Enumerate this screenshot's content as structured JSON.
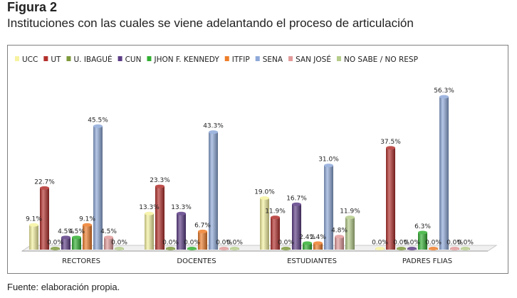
{
  "figure_label": "Figura 2",
  "figure_title": "Instituciones con las cuales se viene adelantando el proceso de articulación",
  "source_note": "Fuente: elaboración propia.",
  "chart_data": {
    "type": "bar",
    "categories": [
      "RECTORES",
      "DOCENTES",
      "ESTUDIANTES",
      "PADRES FLIAS"
    ],
    "series": [
      {
        "name": "UCC",
        "color": "#f6f2a0",
        "values": [
          9.1,
          13.3,
          19.0,
          0.0
        ],
        "labels": [
          "9.1%",
          "13.3%",
          "19.0%",
          "0.0%"
        ]
      },
      {
        "name": "UT",
        "color": "#b3302c",
        "values": [
          22.7,
          23.3,
          11.9,
          37.5
        ],
        "labels": [
          "22.7%",
          "23.3%",
          "11.9%",
          "37.5%"
        ]
      },
      {
        "name": "U. IBAGUÉ",
        "color": "#7e9a3c",
        "values": [
          0.0,
          0.0,
          0.0,
          0.0
        ],
        "labels": [
          "0.0%",
          "0.0%",
          "0.0%",
          "0.0%"
        ]
      },
      {
        "name": "CUN",
        "color": "#5d3d86",
        "values": [
          4.5,
          13.3,
          16.7,
          0.0
        ],
        "labels": [
          "4.5%",
          "13.3%",
          "16.7%",
          "0.0%"
        ]
      },
      {
        "name": "JHON F. KENNEDY",
        "color": "#33b033",
        "values": [
          4.5,
          0.0,
          2.4,
          6.3
        ],
        "labels": [
          "4.5%",
          "0.0%",
          "2.4%",
          "6.3%"
        ]
      },
      {
        "name": "ITFIP",
        "color": "#ee7d2a",
        "values": [
          9.1,
          6.7,
          2.4,
          0.0
        ],
        "labels": [
          "9.1%",
          "6.7%",
          "2.4%",
          "0.0%"
        ]
      },
      {
        "name": "SENA",
        "color": "#8ea9d9",
        "values": [
          45.5,
          43.3,
          31.0,
          56.3
        ],
        "labels": [
          "45.5%",
          "43.3%",
          "31.0%",
          "56.3%"
        ]
      },
      {
        "name": "SAN JOSÉ",
        "color": "#e29a9a",
        "values": [
          4.5,
          0.0,
          4.8,
          0.0
        ],
        "labels": [
          "4.5%",
          "0.0%",
          "4.8%",
          "0.0%"
        ]
      },
      {
        "name": "NO SABE / NO RESP",
        "color": "#b5cc8a",
        "values": [
          0.0,
          0.0,
          11.9,
          0.0
        ],
        "labels": [
          "0.0%",
          "0.0%",
          "11.9%",
          "0.0%"
        ]
      }
    ],
    "ylim": [
      0,
      60
    ],
    "grid": false,
    "legend_position": "top",
    "title": "",
    "xlabel": "",
    "ylabel": ""
  }
}
